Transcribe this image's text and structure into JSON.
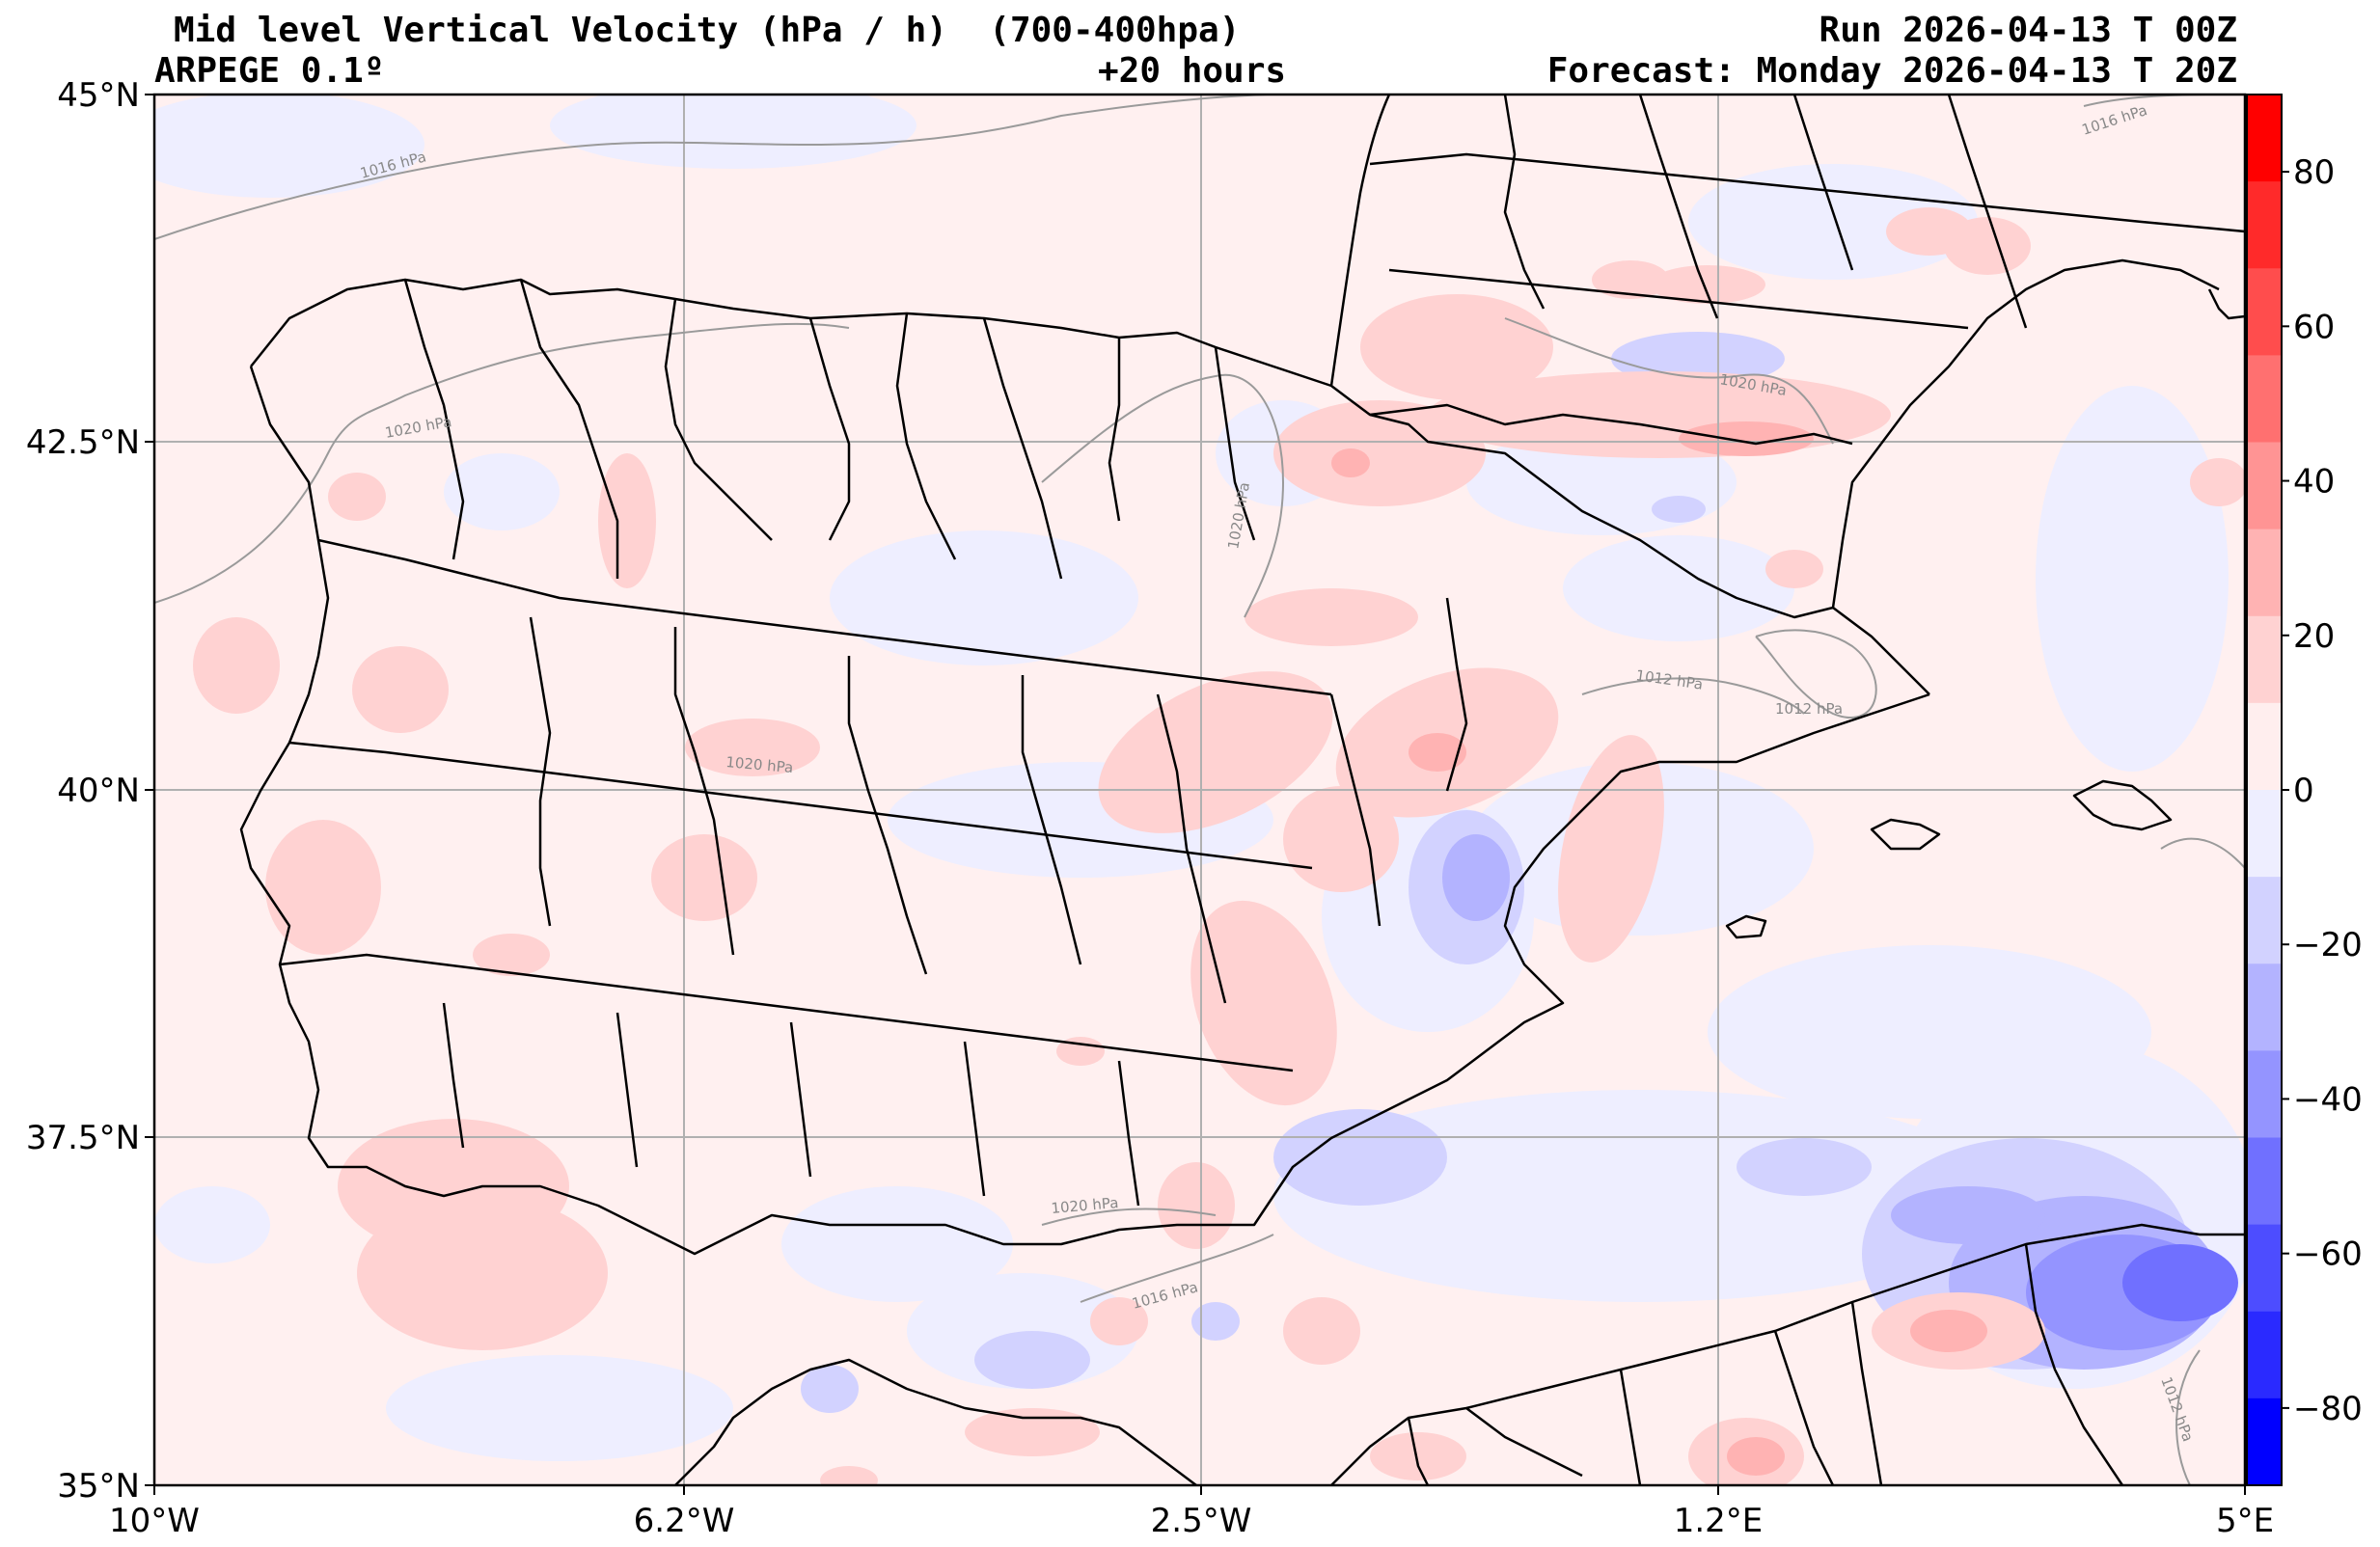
{
  "header": {
    "title": "Mid level Vertical Velocity (hPa / h)  (700-400hpa)",
    "model": "ARPEGE 0.1º",
    "lead": "+20 hours",
    "run": "Run 2026-04-13 T 00Z",
    "forecast": "Forecast: Monday 2026-04-13 T 20Z"
  },
  "axes": {
    "lat_labels": [
      "45°N",
      "42.5°N",
      "40°N",
      "37.5°N",
      "35°N"
    ],
    "lon_labels": [
      "10°W",
      "6.2°W",
      "2.5°W",
      "1.2°E",
      "5°E"
    ]
  },
  "colorbar": {
    "ticks": [
      "80",
      "60",
      "40",
      "20",
      "0",
      "−20",
      "−40",
      "−60",
      "−80"
    ],
    "colors": [
      "#ff0000",
      "#ff2a2a",
      "#ff4d4d",
      "#ff7070",
      "#ff9494",
      "#ffb3b3",
      "#ffd2d2",
      "#ffeeee",
      "#eeeeff",
      "#d2d2ff",
      "#b3b3ff",
      "#9494ff",
      "#7070ff",
      "#4d4dff",
      "#2a2aff",
      "#0000ff"
    ]
  },
  "isobars": [
    {
      "text": "1016 hPa"
    },
    {
      "text": "1020 hPa"
    },
    {
      "text": "1020 hPa"
    },
    {
      "text": "1016 hPa"
    },
    {
      "text": "1020 hPa"
    },
    {
      "text": "1012 hPa"
    },
    {
      "text": "1012 hPa"
    },
    {
      "text": "1020 hPa"
    },
    {
      "text": "1016 hPa"
    },
    {
      "text": "1012 hPa"
    },
    {
      "text": "1020 hPa"
    }
  ],
  "colors": {
    "background_field": "#fff0f0",
    "positive_light": "#ffd2d2",
    "positive_mid": "#ffb3b3",
    "negative_light": "#eeeeff",
    "negative_mid": "#d2d2ff",
    "negative_strong": "#b3b3ff",
    "negative_deep": "#7070ff"
  }
}
